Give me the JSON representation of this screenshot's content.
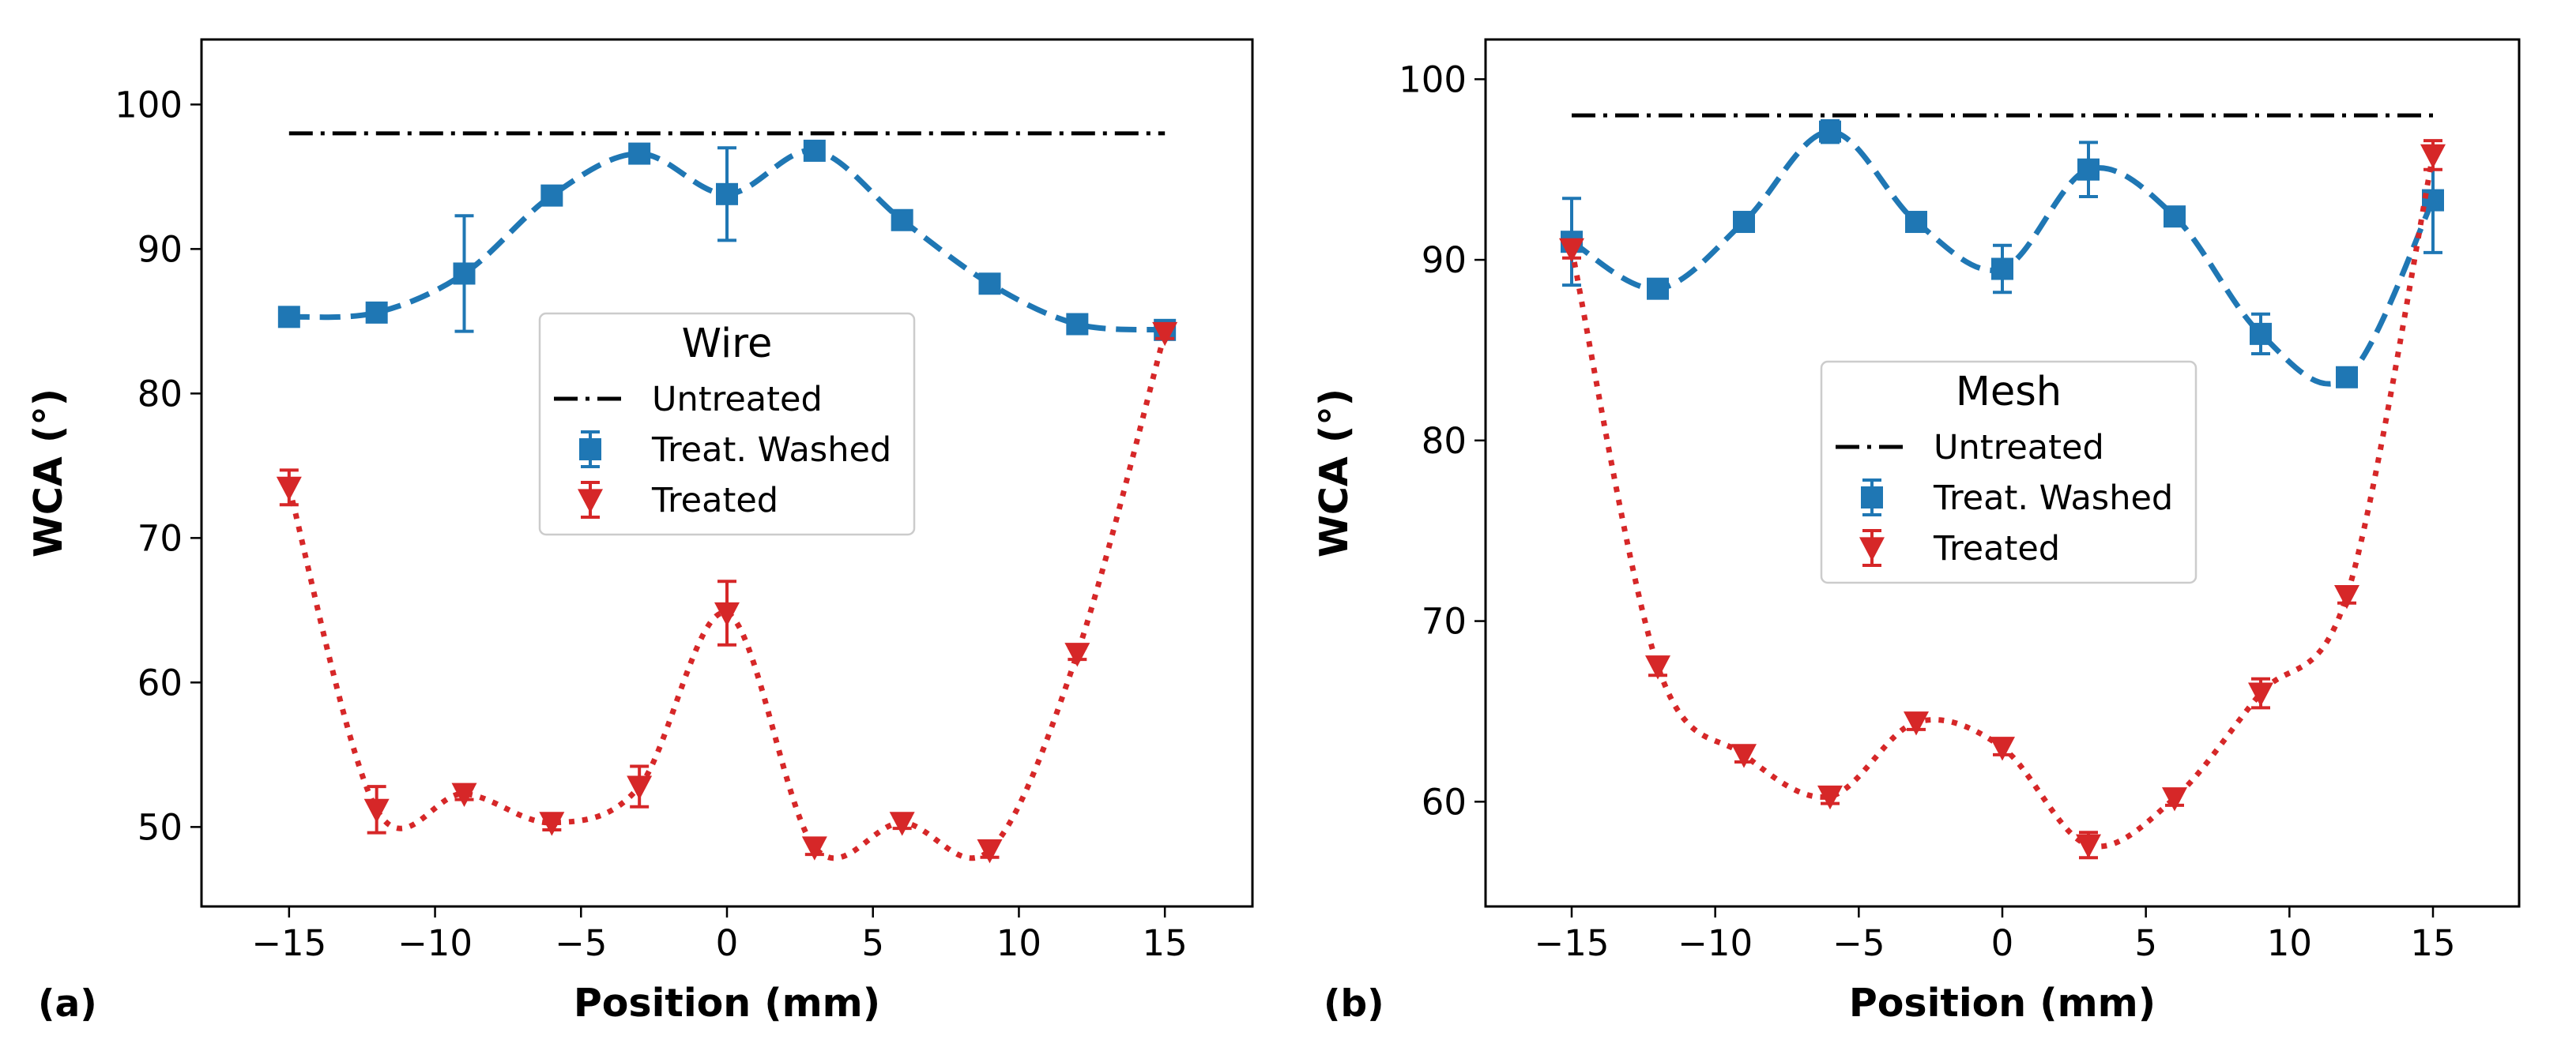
{
  "chart_data": [
    {
      "type": "line",
      "panel_label": "(a)",
      "legend_title": "Wire",
      "xlabel": "Position (mm)",
      "ylabel": "WCA (°)",
      "xlim": [
        -18,
        18
      ],
      "ylim": [
        44.5,
        104.5
      ],
      "xticks": [
        -15,
        -10,
        -5,
        0,
        5,
        10,
        15
      ],
      "yticks": [
        50,
        60,
        70,
        80,
        90,
        100
      ],
      "xtick_labels": [
        "−15",
        "−10",
        "−5",
        "0",
        "5",
        "10",
        "15"
      ],
      "ytick_labels": [
        "50",
        "60",
        "70",
        "80",
        "90",
        "100"
      ],
      "legend_position": "center",
      "series": [
        {
          "name": "Untreated",
          "style": "dashdot",
          "color": "#000000",
          "x": [
            -15,
            15
          ],
          "y": [
            98,
            98
          ]
        },
        {
          "name": "Treat. Washed",
          "style": "dashed",
          "marker": "square",
          "color": "#1f77b4",
          "x": [
            -15,
            -12,
            -9,
            -6,
            -3,
            0,
            3,
            6,
            9,
            12,
            15
          ],
          "y": [
            85.3,
            85.6,
            88.3,
            93.7,
            96.6,
            93.8,
            96.8,
            92.0,
            87.6,
            84.8,
            84.4
          ],
          "err": [
            0.3,
            0.3,
            4.0,
            0.4,
            0.4,
            3.2,
            0.3,
            0.3,
            0.3,
            0.3,
            0.3
          ]
        },
        {
          "name": "Treated",
          "style": "dotted",
          "marker": "triangle_down",
          "color": "#d62728",
          "x": [
            -15,
            -12,
            -9,
            -6,
            -3,
            0,
            3,
            6,
            9,
            12,
            15
          ],
          "y": [
            73.5,
            51.2,
            52.3,
            50.3,
            52.8,
            64.8,
            48.6,
            50.3,
            48.4,
            62.0,
            84.2
          ],
          "err": [
            1.2,
            1.6,
            0.4,
            0.5,
            1.4,
            2.2,
            0.5,
            0.4,
            0.5,
            0.4,
            0.4
          ]
        }
      ]
    },
    {
      "type": "line",
      "panel_label": "(b)",
      "legend_title": "Mesh",
      "xlabel": "Position (mm)",
      "ylabel": "WCA (°)",
      "xlim": [
        -18,
        18
      ],
      "ylim": [
        54.2,
        102.2
      ],
      "xticks": [
        -15,
        -10,
        -5,
        0,
        5,
        10,
        15
      ],
      "yticks": [
        60,
        70,
        80,
        90,
        100
      ],
      "xtick_labels": [
        "−15",
        "−10",
        "−5",
        "0",
        "5",
        "10",
        "15"
      ],
      "ytick_labels": [
        "60",
        "70",
        "80",
        "90",
        "100"
      ],
      "legend_position": "center",
      "series": [
        {
          "name": "Untreated",
          "style": "dashdot",
          "color": "#000000",
          "x": [
            -15,
            15
          ],
          "y": [
            98,
            98
          ]
        },
        {
          "name": "Treat. Washed",
          "style": "dashed",
          "marker": "square",
          "color": "#1f77b4",
          "x": [
            -15,
            -12,
            -9,
            -6,
            -3,
            0,
            3,
            6,
            9,
            12,
            15
          ],
          "y": [
            91.0,
            88.4,
            92.1,
            97.1,
            92.1,
            89.5,
            95.0,
            92.4,
            85.9,
            83.5,
            93.3
          ],
          "err": [
            2.4,
            0.3,
            0.4,
            0.6,
            0.3,
            1.3,
            1.5,
            0.3,
            1.1,
            0.4,
            2.9
          ]
        },
        {
          "name": "Treated",
          "style": "dotted",
          "marker": "triangle_down",
          "color": "#d62728",
          "x": [
            -15,
            -12,
            -9,
            -6,
            -3,
            0,
            3,
            6,
            9,
            12,
            15
          ],
          "y": [
            90.6,
            67.5,
            62.6,
            60.3,
            64.4,
            63.0,
            57.6,
            60.2,
            66.0,
            71.4,
            95.8
          ],
          "err": [
            0.5,
            0.5,
            0.4,
            0.4,
            0.4,
            0.4,
            0.7,
            0.4,
            0.8,
            0.4,
            0.8
          ]
        }
      ]
    }
  ]
}
